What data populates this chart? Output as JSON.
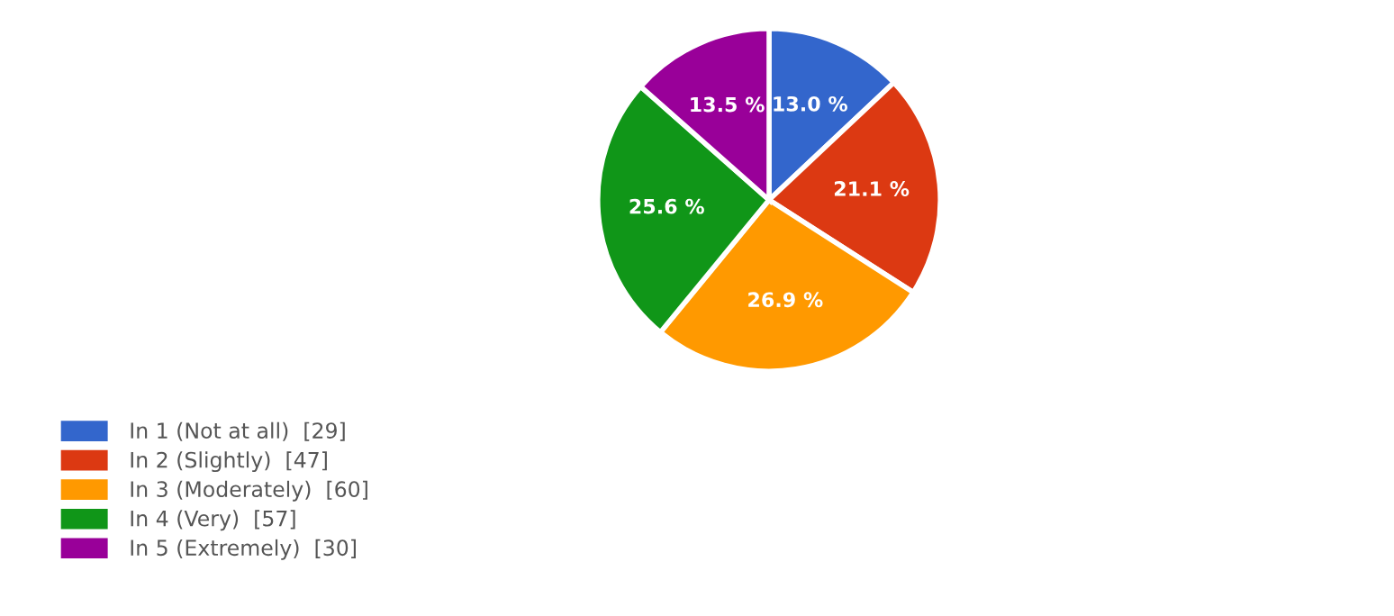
{
  "chart_data": {
    "type": "pie",
    "categories": [
      "In 1 (Not at all)  [29]",
      "In 2 (Slightly)  [47]",
      "In 3 (Moderately)  [60]",
      "In 4 (Very)  [57]",
      "In 5 (Extremely)  [30]"
    ],
    "values": [
      13.0,
      21.1,
      26.9,
      25.6,
      13.5
    ],
    "colors": [
      "#3366cc",
      "#dc3912",
      "#ff9900",
      "#109618",
      "#990099"
    ],
    "value_labels": [
      "13.0 %",
      "21.1 %",
      "26.9 %",
      "25.6 %",
      "13.5 %"
    ],
    "legend": "bottom left"
  }
}
